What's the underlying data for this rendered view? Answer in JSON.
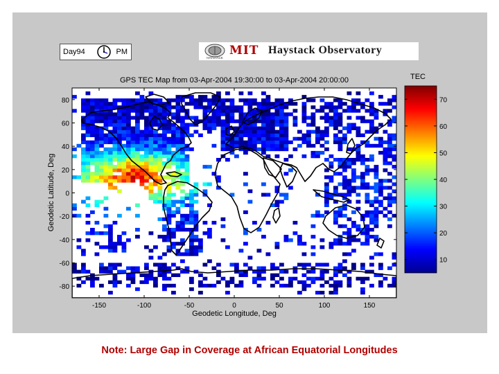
{
  "header": {
    "day_label": "Day94",
    "pm_label": "PM",
    "logo_mit": "MIT",
    "logo_observatory": "Haystack Observatory",
    "logo_seal_text": "HAYSTACK"
  },
  "chart_data": {
    "type": "heatmap",
    "title": "GPS TEC Map  from 03-Apr-2004 19:30:00 to 03-Apr-2004 20:00:00",
    "xlabel": "Geodetic Longitude, Deg",
    "ylabel": "Geodetic Latitude, Deg",
    "xlim": [
      -180,
      180
    ],
    "ylim": [
      -90,
      90
    ],
    "x_ticks": [
      -150,
      -100,
      -50,
      0,
      50,
      100,
      150
    ],
    "y_ticks": [
      80,
      60,
      40,
      20,
      0,
      -20,
      -40,
      -60,
      -80
    ],
    "colorbar": {
      "title": "TEC",
      "range": [
        5,
        75
      ],
      "ticks": [
        70,
        60,
        50,
        40,
        30,
        20,
        10
      ]
    }
  },
  "note": "Note: Large Gap in Coverage at African Equatorial Longitudes",
  "colors": {
    "note": "#b00000",
    "panel": "#c8c8c8"
  }
}
